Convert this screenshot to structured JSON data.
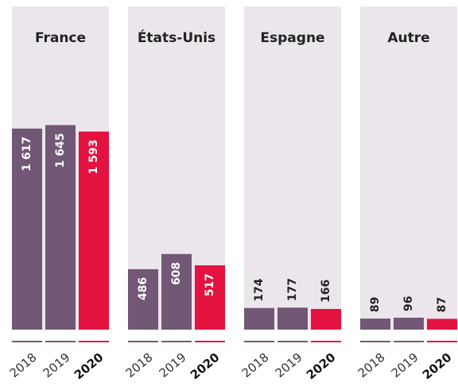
{
  "chart_data": [
    {
      "type": "bar",
      "title": "France",
      "categories": [
        "2018",
        "2019",
        "2020"
      ],
      "values": [
        1617,
        1645,
        1593
      ],
      "value_labels": [
        "1 617",
        "1 645",
        "1 593"
      ],
      "colors": [
        "#735776",
        "#735776",
        "#e3123f"
      ],
      "ylim": [
        0,
        2600
      ]
    },
    {
      "type": "bar",
      "title": "États-Unis",
      "categories": [
        "2018",
        "2019",
        "2020"
      ],
      "values": [
        486,
        608,
        517
      ],
      "value_labels": [
        "486",
        "608",
        "517"
      ],
      "colors": [
        "#735776",
        "#735776",
        "#e3123f"
      ],
      "ylim": [
        0,
        2600
      ]
    },
    {
      "type": "bar",
      "title": "Espagne",
      "categories": [
        "2018",
        "2019",
        "2020"
      ],
      "values": [
        174,
        177,
        166
      ],
      "value_labels": [
        "174",
        "177",
        "166"
      ],
      "colors": [
        "#735776",
        "#735776",
        "#e3123f"
      ],
      "ylim": [
        0,
        2600
      ]
    },
    {
      "type": "bar",
      "title": "Autre",
      "categories": [
        "2018",
        "2019",
        "2020"
      ],
      "values": [
        89,
        96,
        87
      ],
      "value_labels": [
        "89",
        "96",
        "87"
      ],
      "colors": [
        "#735776",
        "#735776",
        "#e3123f"
      ],
      "ylim": [
        0,
        2600
      ]
    }
  ]
}
